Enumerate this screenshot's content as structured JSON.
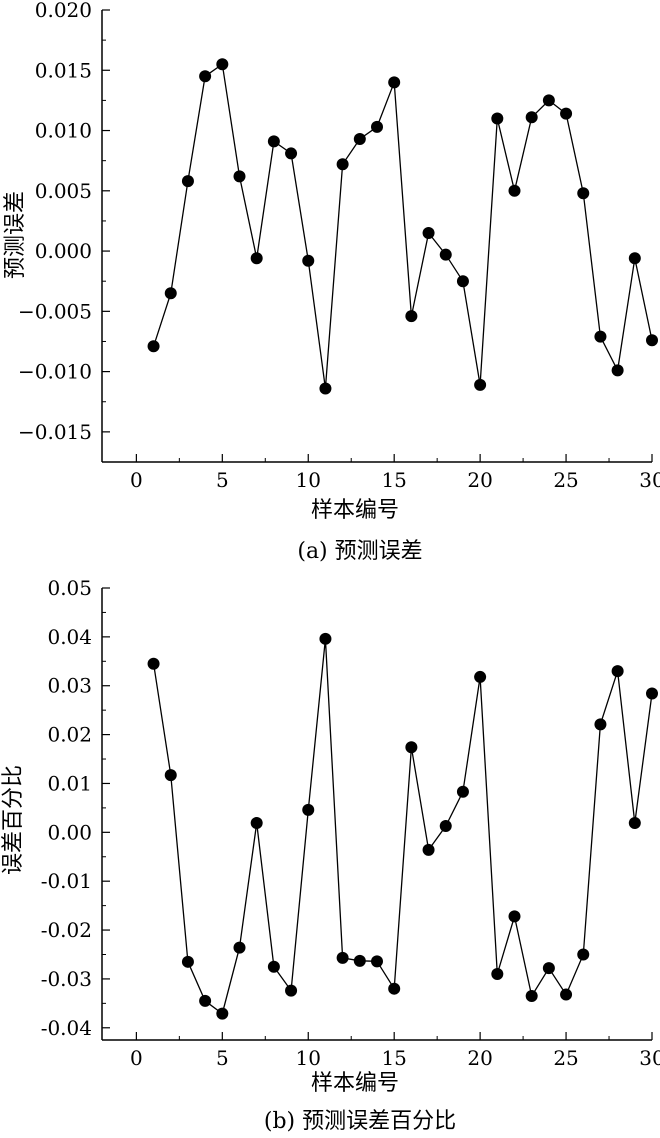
{
  "chart_data": [
    {
      "type": "line",
      "caption": "(a) 预测误差",
      "xlabel": "样本编号",
      "ylabel": "预测误差",
      "xlim": [
        -2,
        30
      ],
      "ylim": [
        -0.0175,
        0.02
      ],
      "xticks": [
        0,
        5,
        10,
        15,
        20,
        25,
        30
      ],
      "xtick_labels": [
        "0",
        "5",
        "10",
        "15",
        "20",
        "25",
        "30"
      ],
      "yticks": [
        -0.015,
        -0.01,
        -0.005,
        0.0,
        0.005,
        0.01,
        0.015,
        0.02
      ],
      "ytick_labels": [
        "−0.015",
        "−0.010",
        "−0.005",
        "0.000",
        "0.005",
        "0.010",
        "0.015",
        "0.020"
      ],
      "grid": false,
      "x": [
        1,
        2,
        3,
        4,
        5,
        6,
        7,
        8,
        9,
        10,
        11,
        12,
        13,
        14,
        15,
        16,
        17,
        18,
        19,
        20,
        21,
        22,
        23,
        24,
        25,
        26,
        27,
        28,
        29,
        30
      ],
      "y": [
        -0.0079,
        -0.0035,
        0.0058,
        0.0145,
        0.0155,
        0.0062,
        -0.0006,
        0.0091,
        0.0081,
        -0.0008,
        -0.0114,
        0.0072,
        0.0093,
        0.0103,
        0.014,
        -0.0054,
        0.0015,
        -0.0003,
        -0.0025,
        -0.0111,
        0.011,
        0.005,
        0.0111,
        0.0125,
        0.0114,
        0.0048,
        -0.0071,
        -0.0099,
        -0.0006,
        -0.0074
      ],
      "color": "#000000",
      "marker": "filled-circle"
    },
    {
      "type": "line",
      "caption": "(b) 预测误差百分比",
      "xlabel": "样本编号",
      "ylabel": "误差百分比",
      "xlim": [
        -2,
        30
      ],
      "ylim": [
        -0.0425,
        0.05
      ],
      "xticks": [
        0,
        5,
        10,
        15,
        20,
        25,
        30
      ],
      "xtick_labels": [
        "0",
        "5",
        "10",
        "15",
        "20",
        "25",
        "30"
      ],
      "yticks": [
        -0.04,
        -0.03,
        -0.02,
        -0.01,
        0.0,
        0.01,
        0.02,
        0.03,
        0.04,
        0.05
      ],
      "ytick_labels": [
        "-0.04",
        "-0.03",
        "-0.02",
        "-0.01",
        "0.00",
        "0.01",
        "0.02",
        "0.03",
        "0.04",
        "0.05"
      ],
      "grid": false,
      "x": [
        1,
        2,
        3,
        4,
        5,
        6,
        7,
        8,
        9,
        10,
        11,
        12,
        13,
        14,
        15,
        16,
        17,
        18,
        19,
        20,
        21,
        22,
        23,
        24,
        25,
        26,
        27,
        28,
        29,
        30
      ],
      "y": [
        0.0345,
        0.0117,
        -0.0265,
        -0.0345,
        -0.0371,
        -0.0236,
        0.0019,
        -0.0275,
        -0.0324,
        0.0046,
        0.0396,
        -0.0257,
        -0.0263,
        -0.0264,
        -0.032,
        0.0174,
        -0.0036,
        0.0013,
        0.0083,
        0.0318,
        -0.029,
        -0.0172,
        -0.0335,
        -0.0278,
        -0.0332,
        -0.025,
        0.0221,
        0.033,
        0.0019,
        0.0284
      ],
      "color": "#000000",
      "marker": "filled-circle"
    }
  ]
}
